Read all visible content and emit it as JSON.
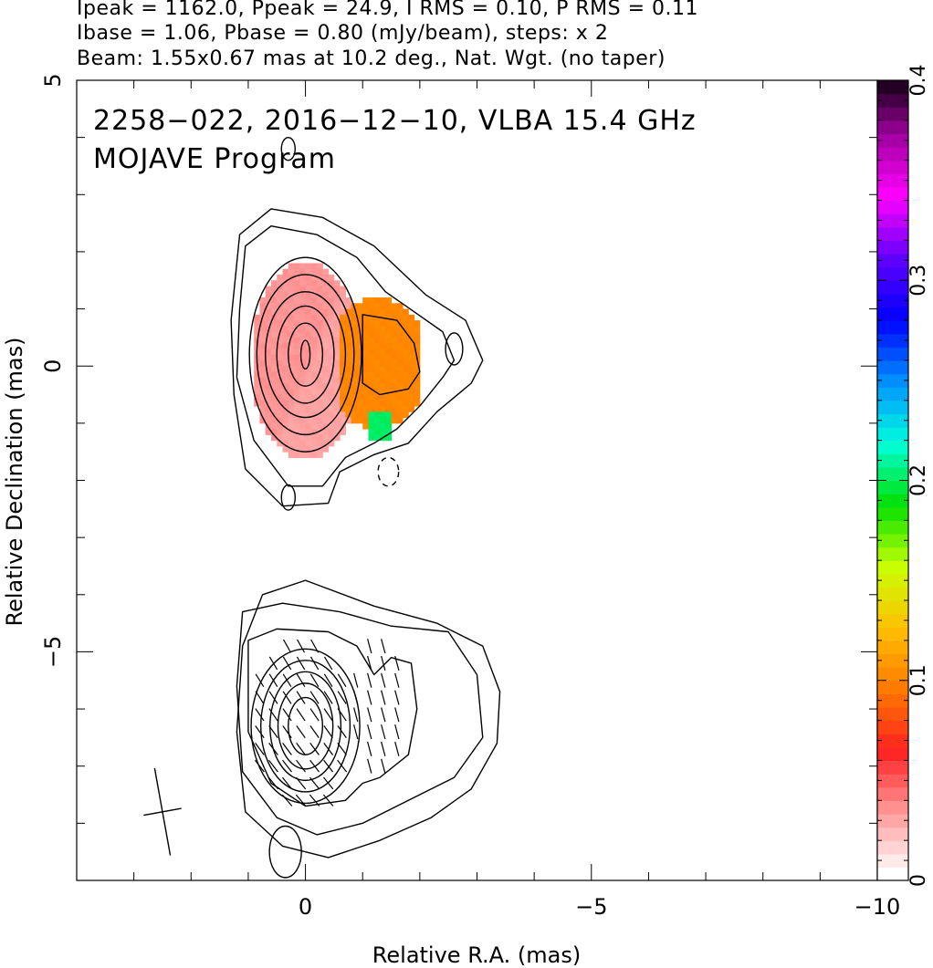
{
  "header": {
    "line1": "Ipeak = 1162.0, Ppeak = 24.9, I RMS = 0.10, P RMS = 0.11",
    "line2": "Ibase = 1.06, Pbase = 0.80 (mJy/beam), steps: x 2",
    "line3": "Beam: 1.55x0.67 mas at 10.2 deg., Nat. Wgt. (no taper)"
  },
  "chart_data": {
    "type": "heatmap",
    "title": "2258−022, 2016−12−10, VLBA 15.4 GHz",
    "subtitle": "MOJAVE Program",
    "xlabel": "Relative R.A. (mas)",
    "ylabel": "Relative Declination (mas)",
    "xlim": [
      4,
      -10
    ],
    "ylim": [
      -9,
      5
    ],
    "x_ticks": [
      0,
      -5,
      -10
    ],
    "x_tick_labels": [
      "0",
      "−5",
      "−10"
    ],
    "y_ticks": [
      5,
      0,
      -5
    ],
    "y_tick_labels": [
      "5",
      "0",
      "−5"
    ],
    "colorbar": {
      "range": [
        0,
        0.4
      ],
      "ticks": [
        0,
        0.1,
        0.2,
        0.3,
        0.4
      ],
      "tick_labels": [
        "0",
        "0.1",
        "0.2",
        "0.3",
        "0.4"
      ],
      "colors": [
        "#ffffff",
        "#ff9a9a",
        "#ff2020",
        "#ff7a00",
        "#ffc000",
        "#c8ff00",
        "#00e000",
        "#00ffdd",
        "#0090ff",
        "#0000ff",
        "#6000ff",
        "#ff00ff",
        "#a000a0",
        "#000000"
      ]
    },
    "upper_component": {
      "total_intensity_contours": true,
      "fractional_polarization_fill": [
        {
          "region": "core",
          "value": 0.03
        },
        {
          "region": "east-side",
          "value": 0.1
        },
        {
          "region": "edge",
          "value": 0.2
        }
      ]
    },
    "lower_component": {
      "polarized_intensity_contours": true,
      "evpa_ticks": true,
      "center": [
        0,
        -6.3
      ]
    },
    "beam": {
      "major_mas": 1.55,
      "minor_mas": 0.67,
      "pa_deg": 10.2,
      "center": [
        2.5,
        -7.8
      ]
    }
  }
}
